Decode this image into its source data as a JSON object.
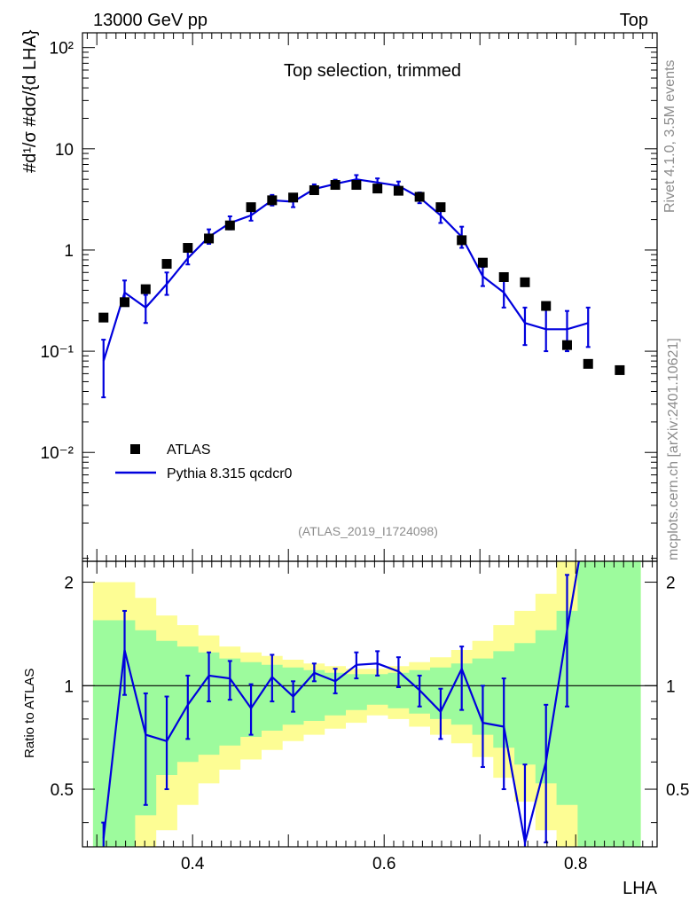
{
  "header": {
    "energy_label": "13000 GeV pp",
    "process_label": "Top"
  },
  "side_labels": {
    "rivet": "Rivet 4.1.0,  3.5M events",
    "mcplots": "mcplots.cern.ch [arXiv:2401.10621]"
  },
  "colors": {
    "mc": "#0000dd",
    "band_inner": "#9dfb9d",
    "band_outer": "#fdfd94",
    "data": "#000000"
  },
  "chart_data": [
    {
      "type": "scatter",
      "title": "Top selection, trimmed",
      "analysis": "(ATLAS_2019_I1724098)",
      "xlabel": "LHA",
      "ylabel": "#d¹/σ #dσ/{d LHA}",
      "xlim": [
        0.285,
        0.885
      ],
      "ylim": [
        0.00084,
        140
      ],
      "yscale": "log",
      "ytick_labels": [
        "10⁻²",
        "10⁻¹",
        "1",
        "10",
        "10²"
      ],
      "legend": {
        "position": "bottom-left",
        "entries": [
          "ATLAS",
          "Pythia 8.315 qcdcr0"
        ]
      },
      "x": [
        0.307,
        0.329,
        0.351,
        0.373,
        0.395,
        0.417,
        0.439,
        0.461,
        0.483,
        0.505,
        0.527,
        0.549,
        0.571,
        0.593,
        0.615,
        0.637,
        0.659,
        0.681,
        0.703,
        0.725,
        0.747,
        0.769,
        0.791,
        0.813,
        0.846
      ],
      "series": [
        {
          "name": "ATLAS",
          "values": [
            0.215,
            0.305,
            0.41,
            0.73,
            1.05,
            1.3,
            1.75,
            2.65,
            3.1,
            3.3,
            3.9,
            4.4,
            4.4,
            4.05,
            3.85,
            3.35,
            2.65,
            1.25,
            0.75,
            0.54,
            0.48,
            0.28,
            0.115,
            0.075,
            0.065
          ]
        },
        {
          "name": "Pythia 8.315 qcdcr0",
          "values": [
            0.08,
            0.38,
            0.27,
            0.46,
            0.83,
            1.35,
            1.85,
            2.2,
            3.1,
            3.0,
            4.0,
            4.5,
            5.0,
            4.65,
            4.3,
            3.3,
            2.2,
            1.35,
            0.55,
            0.38,
            0.19,
            0.165,
            0.165,
            0.19,
            null
          ],
          "err_low": [
            0.035,
            0.29,
            0.19,
            0.36,
            0.72,
            1.15,
            1.6,
            1.95,
            2.75,
            2.65,
            3.6,
            4.1,
            4.6,
            4.25,
            3.85,
            2.9,
            1.85,
            1.05,
            0.44,
            0.27,
            0.115,
            0.1,
            0.1,
            0.11,
            null
          ],
          "err_high": [
            0.13,
            0.5,
            0.36,
            0.6,
            0.97,
            1.6,
            2.15,
            2.5,
            3.5,
            3.4,
            4.45,
            4.95,
            5.5,
            5.1,
            4.75,
            3.7,
            2.6,
            1.7,
            0.68,
            0.52,
            0.27,
            0.26,
            0.25,
            0.27,
            null
          ]
        }
      ]
    },
    {
      "type": "line",
      "ylabel": "Ratio to ATLAS",
      "xlabel": "LHA",
      "xlim": [
        0.285,
        0.885
      ],
      "ylim": [
        0.34,
        2.3
      ],
      "xtick_labels": [
        "0.4",
        "0.6",
        "0.8"
      ],
      "ytick_labels": [
        "0.5",
        "1",
        "2"
      ],
      "reference_line": 1,
      "bins": [
        0.296,
        0.318,
        0.34,
        0.362,
        0.384,
        0.406,
        0.428,
        0.45,
        0.472,
        0.494,
        0.516,
        0.538,
        0.56,
        0.582,
        0.604,
        0.626,
        0.648,
        0.67,
        0.692,
        0.714,
        0.736,
        0.758,
        0.78,
        0.802,
        0.824,
        0.868
      ],
      "band_inner_low": [
        0.34,
        0.34,
        0.42,
        0.55,
        0.6,
        0.63,
        0.67,
        0.71,
        0.74,
        0.77,
        0.79,
        0.82,
        0.85,
        0.88,
        0.86,
        0.83,
        0.8,
        0.77,
        0.72,
        0.66,
        0.59,
        0.52,
        0.45,
        0.34,
        0.34
      ],
      "band_inner_high": [
        1.55,
        1.55,
        1.45,
        1.35,
        1.3,
        1.25,
        1.2,
        1.17,
        1.15,
        1.13,
        1.11,
        1.09,
        1.08,
        1.08,
        1.09,
        1.11,
        1.13,
        1.16,
        1.2,
        1.26,
        1.33,
        1.45,
        1.65,
        2.3,
        2.3
      ],
      "band_outer_low": [
        0.34,
        0.34,
        0.34,
        0.38,
        0.45,
        0.52,
        0.57,
        0.61,
        0.65,
        0.69,
        0.72,
        0.75,
        0.78,
        0.82,
        0.8,
        0.76,
        0.72,
        0.68,
        0.62,
        0.54,
        0.46,
        0.38,
        0.34,
        0.34,
        0.34
      ],
      "band_outer_high": [
        2.0,
        2.0,
        1.8,
        1.6,
        1.5,
        1.4,
        1.3,
        1.25,
        1.22,
        1.19,
        1.16,
        1.14,
        1.12,
        1.12,
        1.14,
        1.17,
        1.21,
        1.27,
        1.35,
        1.5,
        1.65,
        1.85,
        2.3,
        2.3,
        2.3
      ],
      "x": [
        0.307,
        0.329,
        0.351,
        0.373,
        0.395,
        0.417,
        0.439,
        0.461,
        0.483,
        0.505,
        0.527,
        0.549,
        0.571,
        0.593,
        0.615,
        0.637,
        0.659,
        0.681,
        0.703,
        0.725,
        0.747,
        0.769,
        0.791
      ],
      "series": [
        {
          "name": "Pythia 8.315 qcdcr0 / ATLAS",
          "values": [
            0.36,
            1.27,
            0.72,
            0.69,
            0.88,
            1.07,
            1.05,
            0.86,
            1.06,
            0.93,
            1.09,
            1.03,
            1.15,
            1.16,
            1.1,
            0.97,
            0.84,
            1.12,
            0.78,
            0.76,
            0.35,
            0.6,
            1.45
          ],
          "err_low": [
            0.34,
            0.94,
            0.45,
            0.5,
            0.7,
            0.9,
            0.91,
            0.72,
            0.9,
            0.84,
            1.03,
            0.95,
            1.05,
            1.07,
            0.99,
            0.87,
            0.7,
            0.85,
            0.58,
            0.5,
            0.34,
            0.35,
            0.87
          ],
          "err_high": [
            0.4,
            1.65,
            0.95,
            0.93,
            1.07,
            1.25,
            1.18,
            1.01,
            1.23,
            1.03,
            1.16,
            1.12,
            1.25,
            1.26,
            1.21,
            1.07,
            0.98,
            1.3,
            1.0,
            1.05,
            0.59,
            0.88,
            2.1
          ]
        }
      ]
    }
  ]
}
